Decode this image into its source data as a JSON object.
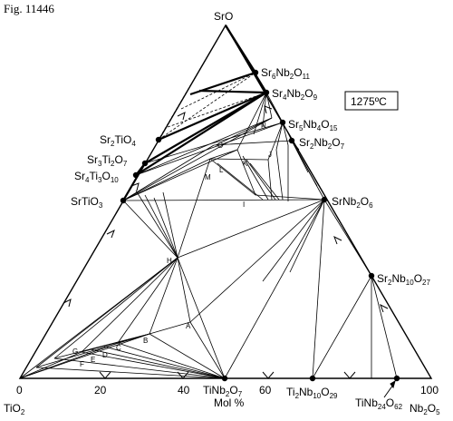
{
  "figure_number": "Fig. 11446",
  "temperature": "1275ºC",
  "vertices": {
    "top": "SrO",
    "left": "TiO",
    "left_sub": "2",
    "right": "Nb",
    "right_sub1": "2",
    "right_mid": "O",
    "right_sub2": "5"
  },
  "axis": {
    "ticks": [
      "0",
      "20",
      "40",
      "60",
      "100"
    ],
    "unit_label": "Mol %"
  },
  "phase_points": [
    "A",
    "B",
    "C",
    "D",
    "E",
    "F",
    "G",
    "H",
    "I",
    "J",
    "K",
    "L",
    "M",
    "N",
    "O"
  ],
  "compounds": {
    "sr6nb2o11": [
      "Sr",
      "6",
      "Nb",
      "2",
      "O",
      "11"
    ],
    "sr4nb2o9": [
      "Sr",
      "4",
      "Nb",
      "2",
      "O",
      "9"
    ],
    "sr5nb4o15": [
      "Sr",
      "5",
      "Nb",
      "4",
      "O",
      "15"
    ],
    "sr2nb2o7": [
      "Sr",
      "2",
      "Nb",
      "2",
      "O",
      "7"
    ],
    "srnb2o6": [
      "SrNb",
      "2",
      "O",
      "6"
    ],
    "sr2nb10o27": [
      "Sr",
      "2",
      "Nb",
      "10",
      "O",
      "27"
    ],
    "sr2tio4": [
      "Sr",
      "2",
      "TiO",
      "4"
    ],
    "sr3ti2o7": [
      "Sr",
      "3",
      "Ti",
      "2",
      "O",
      "7"
    ],
    "sr4ti3o10": [
      "Sr",
      "4",
      "Ti",
      "3",
      "O",
      "10"
    ],
    "srtio3": [
      "SrTiO",
      "3"
    ],
    "tinb2o7": [
      "TiNb",
      "2",
      "O",
      "7"
    ],
    "ti2nb10o29": [
      "Ti",
      "2",
      "Nb",
      "10",
      "O",
      "29"
    ],
    "tinb24o62": [
      "TiNb",
      "24",
      "O",
      "62"
    ]
  }
}
